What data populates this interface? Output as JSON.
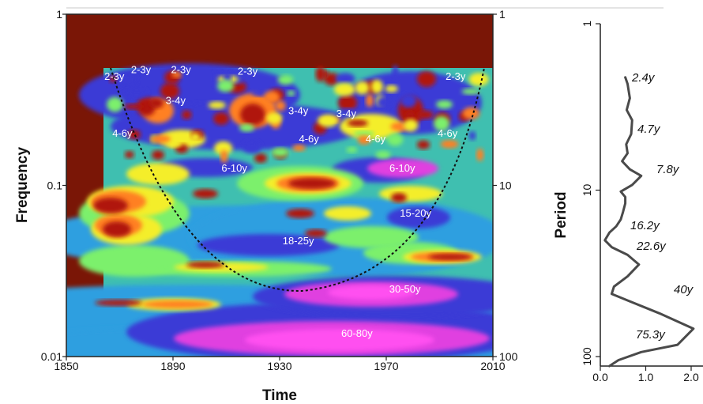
{
  "colors": {
    "edge": "#7a1606",
    "base": "#3fbfb0",
    "blue": "#3a3ad6",
    "magenta": "#e040e0",
    "yellow": "#f4ee2a",
    "red": "#b01808",
    "line": "#4a4a4a"
  },
  "chart_data": [
    {
      "type": "heatmap",
      "title": "",
      "xlabel": "Time",
      "ylabel": "Frequency",
      "y2label": "",
      "x_ticks": [
        "1850",
        "1890",
        "1930",
        "1970",
        "2010"
      ],
      "xlim": [
        1850,
        2010
      ],
      "y_scale": "log",
      "ylim": [
        0.01,
        1
      ],
      "y_ticks": [
        "1",
        "0.1",
        "0.01"
      ],
      "y2_ticks": [
        "1",
        "10",
        "100"
      ],
      "band_labels": [
        {
          "text": "2-3y",
          "year": 1868,
          "freq": 0.43
        },
        {
          "text": "2-3y",
          "year": 1878,
          "freq": 0.47
        },
        {
          "text": "2-3y",
          "year": 1893,
          "freq": 0.47
        },
        {
          "text": "2-3y",
          "year": 1918,
          "freq": 0.46
        },
        {
          "text": "2-3y",
          "year": 1996,
          "freq": 0.43
        },
        {
          "text": "3-4y",
          "year": 1891,
          "freq": 0.31
        },
        {
          "text": "3-4y",
          "year": 1937,
          "freq": 0.27
        },
        {
          "text": "3-4y",
          "year": 1955,
          "freq": 0.26
        },
        {
          "text": "4-6y",
          "year": 1871,
          "freq": 0.2
        },
        {
          "text": "4-6y",
          "year": 1941,
          "freq": 0.185
        },
        {
          "text": "4-6y",
          "year": 1966,
          "freq": 0.185
        },
        {
          "text": "4-6y",
          "year": 1993,
          "freq": 0.2
        },
        {
          "text": "6-10y",
          "year": 1913,
          "freq": 0.125
        },
        {
          "text": "6-10y",
          "year": 1976,
          "freq": 0.125
        },
        {
          "text": "15-20y",
          "year": 1981,
          "freq": 0.068
        },
        {
          "text": "18-25y",
          "year": 1937,
          "freq": 0.047
        },
        {
          "text": "30-50y",
          "year": 1977,
          "freq": 0.0245
        },
        {
          "text": "60-80y",
          "year": 1959,
          "freq": 0.0135
        }
      ]
    },
    {
      "type": "line",
      "title": "",
      "xlabel": "",
      "ylabel": "Period",
      "x_ticks": [
        "0.0",
        "1.0",
        "2.0"
      ],
      "xlim": [
        0,
        2.2
      ],
      "y_scale": "log",
      "ylim": [
        1,
        100
      ],
      "y_ticks": [
        "1",
        "10",
        "100"
      ],
      "x": [
        0.55,
        0.6,
        0.65,
        0.58,
        0.7,
        0.68,
        0.57,
        0.6,
        0.48,
        0.65,
        0.9,
        0.7,
        0.45,
        0.55,
        0.55,
        0.5,
        0.45,
        0.35,
        0.2,
        0.1,
        0.25,
        0.6,
        0.85,
        0.6,
        0.3,
        0.25,
        0.6,
        1.3,
        2.05,
        1.7,
        0.9,
        0.4,
        0.2
      ],
      "period": [
        2.1,
        2.3,
        2.8,
        3.3,
        3.8,
        4.6,
        5.3,
        6.0,
        6.7,
        7.5,
        8.2,
        9.3,
        10.2,
        11.0,
        12.0,
        13.5,
        15.0,
        16.5,
        18.0,
        20.0,
        22.0,
        24.5,
        28.0,
        33.0,
        38.0,
        42.0,
        46.0,
        55.0,
        68.0,
        85.0,
        94.0,
        105.0,
        114.0
      ],
      "peak_labels": [
        "2.4y",
        "4.7y",
        "7.8y",
        "16.2y",
        "22.6y",
        "40y",
        "75.3y"
      ]
    }
  ]
}
